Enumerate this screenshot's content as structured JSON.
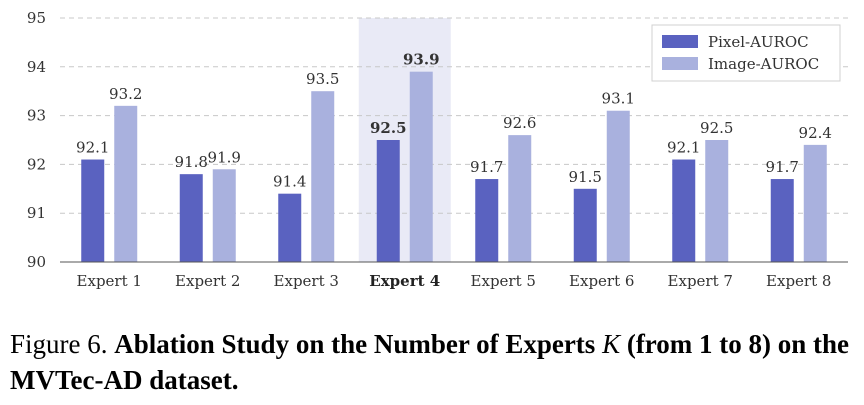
{
  "chart_data": {
    "type": "bar",
    "categories": [
      "Expert 1",
      "Expert 2",
      "Expert 3",
      "Expert 4",
      "Expert 5",
      "Expert 6",
      "Expert 7",
      "Expert 8"
    ],
    "highlight_category": "Expert 4",
    "series": [
      {
        "name": "Pixel-AUROC",
        "color": "#5a62c0",
        "values": [
          92.1,
          91.8,
          91.4,
          92.5,
          91.7,
          91.5,
          92.1,
          91.7
        ]
      },
      {
        "name": "Image-AUROC",
        "color": "#a9b1de",
        "values": [
          93.2,
          91.9,
          93.5,
          93.9,
          92.6,
          93.1,
          92.5,
          92.4
        ]
      }
    ],
    "ylim": [
      90,
      95
    ],
    "yticks": [
      90,
      91,
      92,
      93,
      94,
      95
    ],
    "grid": true,
    "legend": "top-right",
    "highlight_color": "#e9eaf6",
    "xlabel": "",
    "ylabel": ""
  },
  "caption": {
    "prefix": "Figure 6. ",
    "title_part1": "Ablation Study on the Number of Experts ",
    "variable": "K",
    "title_part2": " (from 1 to 8) on the MVTec-AD dataset."
  }
}
